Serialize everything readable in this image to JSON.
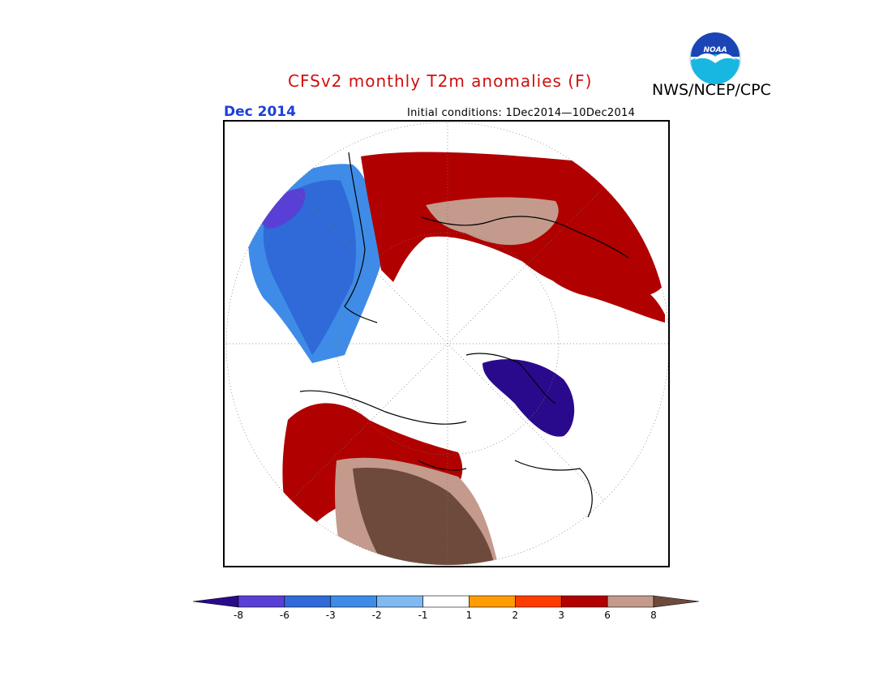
{
  "title": "CFSv2 monthly T2m anomalies (F)",
  "organization": "NWS/NCEP/CPC",
  "logo_text": "NOAA",
  "valid_month": "Dec 2014",
  "initial_conditions": "Initial conditions: 1Dec2014—10Dec2014",
  "colorbar": {
    "bins": [
      {
        "color": "#2a0a8c"
      },
      {
        "color": "#5a3fd6"
      },
      {
        "color": "#2f6ad8"
      },
      {
        "color": "#3f8ce8"
      },
      {
        "color": "#7fbaf2"
      },
      {
        "color": "#ffffff"
      },
      {
        "color": "#ff9c00"
      },
      {
        "color": "#ff3c00"
      },
      {
        "color": "#b00000"
      },
      {
        "color": "#c49a8c"
      },
      {
        "color": "#6e4a3c"
      }
    ],
    "ticks": [
      "-8",
      "-6",
      "-3",
      "-2",
      "-1",
      "1",
      "2",
      "3",
      "6",
      "8"
    ]
  },
  "regions": [
    {
      "name": "greenland-canada-arctic",
      "color": "#3f8ce8"
    },
    {
      "name": "greenland-core",
      "color": "#2f6ad8"
    },
    {
      "name": "greenland-deep",
      "color": "#5a3fd6"
    },
    {
      "name": "russia-warm",
      "color": "#b00000"
    },
    {
      "name": "russia-very-warm",
      "color": "#c49a8c"
    },
    {
      "name": "alaska-canada-warm",
      "color": "#b00000"
    },
    {
      "name": "canada-very-warm",
      "color": "#c49a8c"
    },
    {
      "name": "canada-extreme",
      "color": "#6e4a3c"
    },
    {
      "name": "europe-warm",
      "color": "#b00000"
    },
    {
      "name": "siberia-cold",
      "color": "#2a0a8c"
    }
  ]
}
